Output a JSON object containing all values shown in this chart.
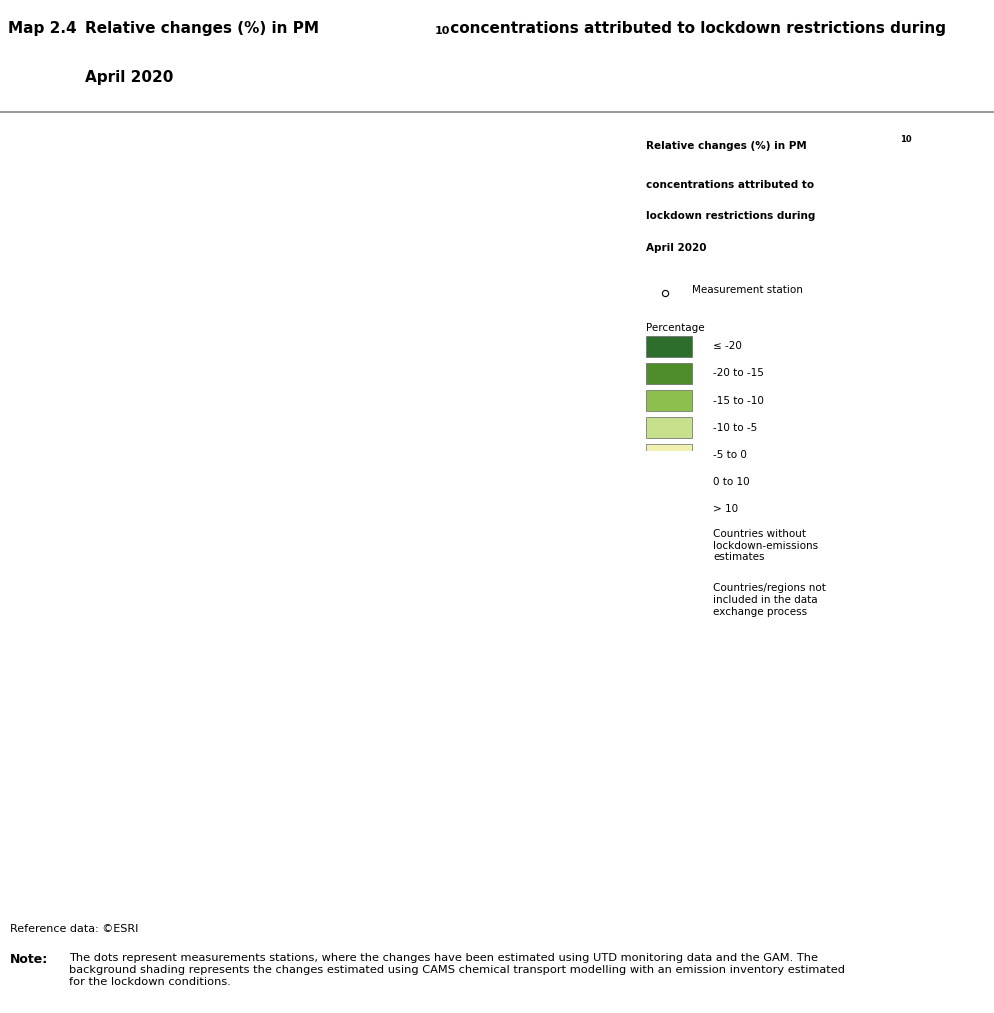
{
  "title_label": "Map 2.4",
  "title_main_part1": "Relative changes (%) in PM",
  "title_sub": "10",
  "title_main_part2": " concentrations attributed to lockdown restrictions during",
  "title_line2": "April 2020",
  "legend_title_line1": "Relative changes (%) in PM",
  "legend_title_sub": "10",
  "legend_title_rest": "\nconcentrations attributed to\nlockdown restrictions during\nApril 2020",
  "legend_colors": [
    "#2d6e2d",
    "#4e8c2a",
    "#8cbf4d",
    "#c7e08b",
    "#f0f0b0",
    "#f5b8b0",
    "#d96040"
  ],
  "legend_labels": [
    "≤ -20",
    "-20 to -15",
    "-15 to -10",
    "-10 to -5",
    "-5 to 0",
    "0 to 10",
    "> 10"
  ],
  "legend_gray": "#7f7f7f",
  "legend_gray_label": "Countries without\nlockdown-emissions\nestimates",
  "legend_lightgray": "#d0d0d0",
  "legend_lightgray_label": "Countries/regions not\nincluded in the data\nexchange process",
  "measurement_station_label": "Measurement station",
  "percentage_label": "Percentage",
  "ref_text": "Reference data: ©ESRI",
  "note_label": "Note:",
  "note_text": "The dots represent measurements stations, where the changes have been estimated using UTD monitoring data and the GAM. The\nbackground shading represents the changes estimated using CAMS chemical transport modelling with an emission inventory estimated\nfor the lockdown conditions.",
  "ocean_color": "#c8e4f0",
  "land_default": "#d0d0d0",
  "fig_bg": "#ffffff",
  "map_extent": [
    -32,
    50,
    33,
    73
  ],
  "figsize": [
    9.95,
    10.13
  ],
  "dpi": 100,
  "country_colors": {
    "Iceland": "#7f7f7f",
    "Norway": "#c7e08b",
    "Sweden": "#f0f0b0",
    "Finland": "#f0f0b0",
    "Denmark": "#c7e08b",
    "United Kingdom": "#c7e08b",
    "Ireland": "#c7e08b",
    "France": "#8cbf4d",
    "Spain": "#8cbf4d",
    "Portugal": "#8cbf4d",
    "Germany": "#8cbf4d",
    "Netherlands": "#8cbf4d",
    "Belgium": "#8cbf4d",
    "Luxembourg": "#8cbf4d",
    "Switzerland": "#2d6e2d",
    "Austria": "#2d6e2d",
    "Italy": "#4e8c2a",
    "Czech Republic": "#c7e08b",
    "Slovakia": "#c7e08b",
    "Poland": "#c7e08b",
    "Hungary": "#c7e08b",
    "Romania": "#c7e08b",
    "Bulgaria": "#c7e08b",
    "Greece": "#c7e08b",
    "Serbia": "#c7e08b",
    "Croatia": "#c7e08b",
    "Slovenia": "#4e8c2a",
    "Bosnia and Herzegovina": "#d0d0d0",
    "Montenegro": "#d0d0d0",
    "North Macedonia": "#c7e08b",
    "Albania": "#c7e08b",
    "Kosovo": "#c7e08b",
    "Estonia": "#c7e08b",
    "Latvia": "#c7e08b",
    "Lithuania": "#c7e08b",
    "Belarus": "#d0d0d0",
    "Ukraine": "#f0f0b0",
    "Moldova": "#d0d0d0",
    "Turkey": "#f0f0b0",
    "Russia": "#d0d0d0",
    "Kazakhstan": "#d0d0d0",
    "Georgia": "#d0d0d0",
    "Armenia": "#d0d0d0",
    "Azerbaijan": "#d0d0d0",
    "Cyprus": "#f0f0b0",
    "Malta": "#c7e08b",
    "Morocco": "#d0d0d0",
    "Algeria": "#d0d0d0",
    "Tunisia": "#d0d0d0",
    "Libya": "#d0d0d0",
    "Egypt": "#d0d0d0",
    "Syria": "#d0d0d0",
    "Lebanon": "#d0d0d0",
    "Israel": "#d0d0d0",
    "Jordan": "#d0d0d0",
    "Saudi Arabia": "#d0d0d0",
    "Iraq": "#d0d0d0",
    "Iran": "#d0d0d0",
    "Greenland": "#d0d0d0",
    "Faroe Islands": "#d0d0d0"
  }
}
